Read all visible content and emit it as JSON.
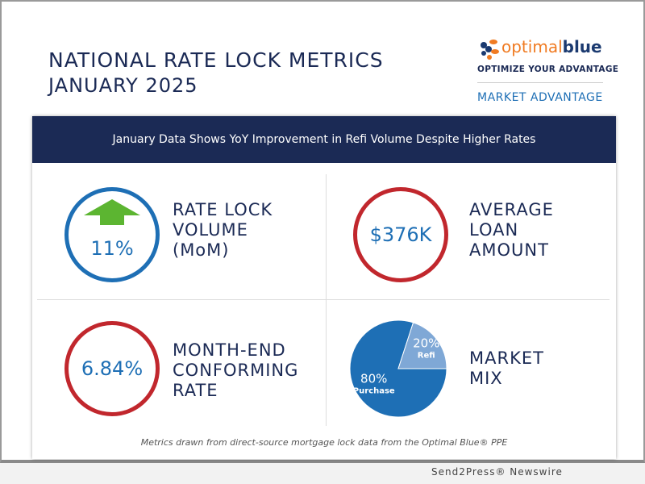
{
  "header": {
    "title": "NATIONAL RATE LOCK METRICS",
    "subtitle": "JANUARY 2025"
  },
  "logo": {
    "brand_orange": "optimal",
    "brand_blue": "blue",
    "tagline": "OPTIMIZE YOUR ADVANTAGE",
    "section": "MARKET ADVANTAGE"
  },
  "banner": "January Data Shows YoY Improvement in Refi Volume Despite Higher Rates",
  "metrics": [
    {
      "value": "11%",
      "label": [
        "RATE LOCK",
        "VOLUME",
        "(MoM)"
      ],
      "icon": "arrow-up-icon",
      "color": "#1e6fb5"
    },
    {
      "value": "$376K",
      "label": [
        "AVERAGE",
        "LOAN",
        "AMOUNT"
      ],
      "color": "#c1272d"
    },
    {
      "value": "6.84%",
      "label": [
        "MONTH-END",
        "CONFORMING",
        "RATE"
      ],
      "color": "#c1272d"
    },
    {
      "label": [
        "MARKET",
        "MIX"
      ]
    }
  ],
  "chart_data": {
    "type": "pie",
    "slices": [
      {
        "label": "Purchase",
        "value": 80,
        "text": "80%",
        "color": "#1e6fb5"
      },
      {
        "label": "Refi",
        "value": 20,
        "text": "20%",
        "color": "#7fa8d6"
      }
    ]
  },
  "footnote": "Metrics drawn from direct-source mortgage lock data from the Optimal Blue® PPE",
  "credit": "Send2Press® Newswire",
  "colors": {
    "navy": "#1b2a55",
    "blue": "#1e6fb5",
    "red": "#c1272d",
    "orange": "#f07b22",
    "green": "#5cb531"
  }
}
